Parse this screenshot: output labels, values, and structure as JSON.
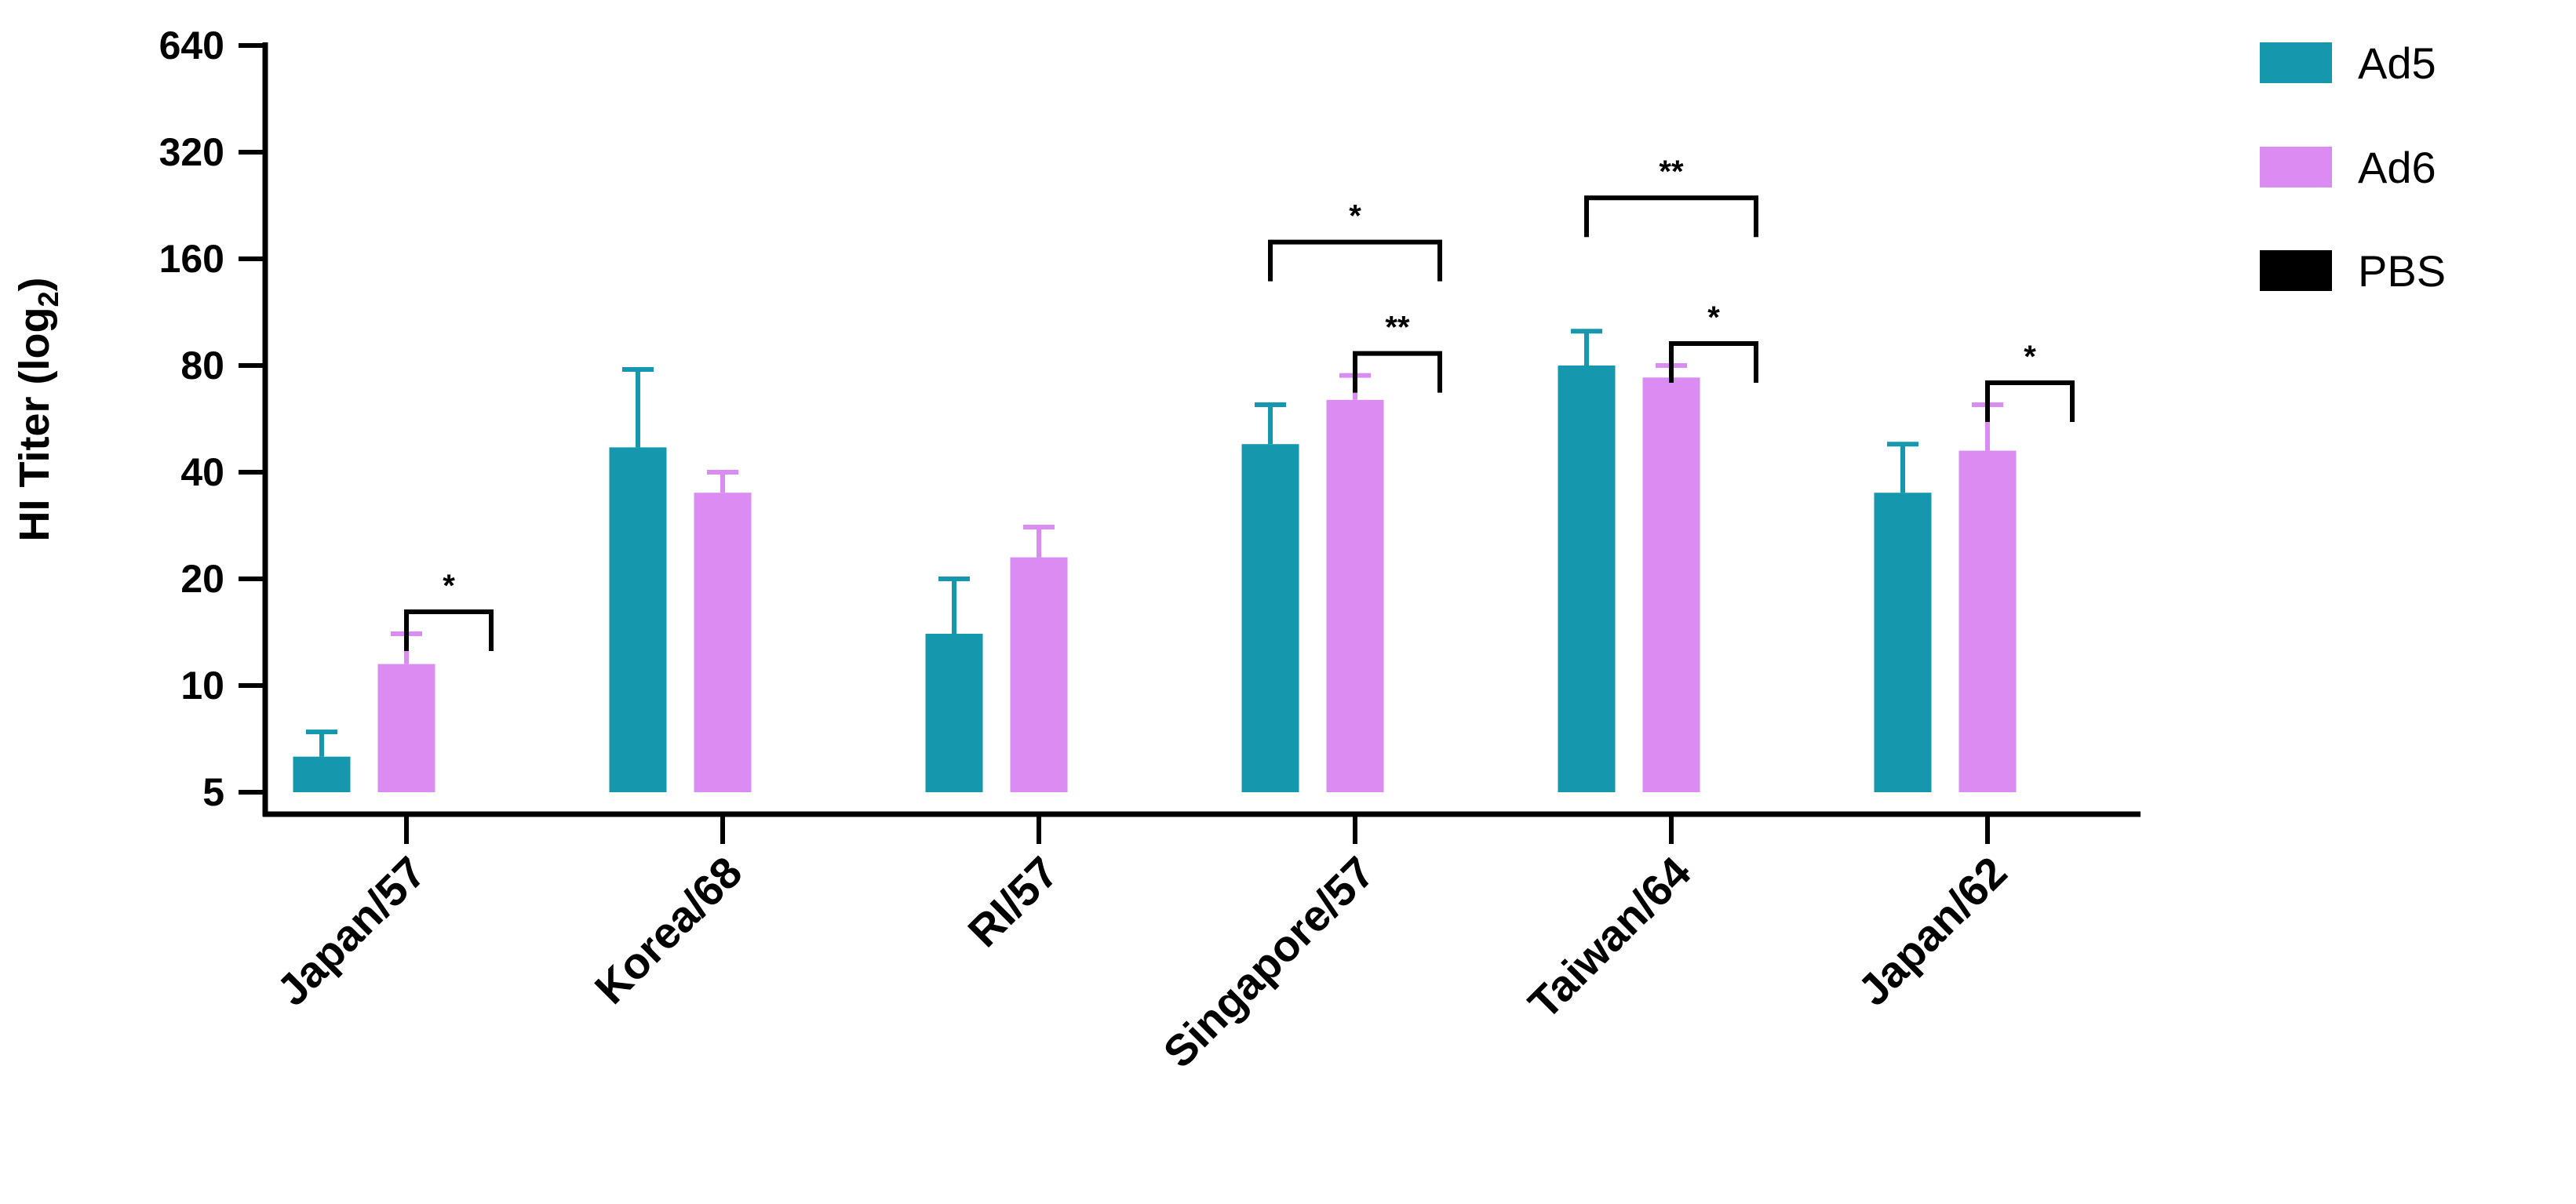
{
  "chart_data": {
    "type": "bar",
    "ylabel": "HI Titer (log",
    "ylabel_sub": "2",
    "ylabel_end": ")",
    "yscale": "log2",
    "ylim": [
      5,
      640
    ],
    "yticks": [
      5,
      10,
      20,
      40,
      80,
      160,
      320,
      640
    ],
    "ytick_labels": [
      "5",
      "10",
      "20",
      "40",
      "80",
      "160",
      "320",
      "640"
    ],
    "categories": [
      "Japan/57",
      "Korea/68",
      "RI/57",
      "Singapore/57",
      "Taiwan/64",
      "Japan/62"
    ],
    "series": [
      {
        "name": "Ad5",
        "color": "#1597AE",
        "values": [
          6.3,
          47,
          14,
          48,
          80,
          35
        ],
        "errors": [
          7.4,
          78,
          20,
          62,
          100,
          48
        ]
      },
      {
        "name": "Ad6",
        "color": "#DA8CF2",
        "values": [
          11.5,
          35,
          23,
          64,
          74,
          46
        ],
        "errors": [
          14,
          40,
          28,
          75,
          80,
          62
        ]
      },
      {
        "name": "PBS",
        "color": "#000000",
        "values": [
          5,
          5,
          5,
          5,
          5,
          5
        ],
        "errors": [
          null,
          null,
          null,
          null,
          null,
          null
        ]
      }
    ],
    "legend": {
      "placement": "top-right",
      "entries": [
        "Ad5",
        "Ad6",
        "PBS"
      ]
    },
    "significance": [
      {
        "category": 0,
        "from": 1,
        "to": 2,
        "label": "*",
        "level": 1
      },
      {
        "category": 3,
        "from": 0,
        "to": 2,
        "label": "*",
        "level": 2
      },
      {
        "category": 3,
        "from": 1,
        "to": 2,
        "label": "**",
        "level": 1
      },
      {
        "category": 4,
        "from": 0,
        "to": 2,
        "label": "**",
        "level": 2
      },
      {
        "category": 4,
        "from": 1,
        "to": 2,
        "label": "*",
        "level": 1
      },
      {
        "category": 5,
        "from": 1,
        "to": 2,
        "label": "*",
        "level": 1
      }
    ],
    "grid": false
  }
}
